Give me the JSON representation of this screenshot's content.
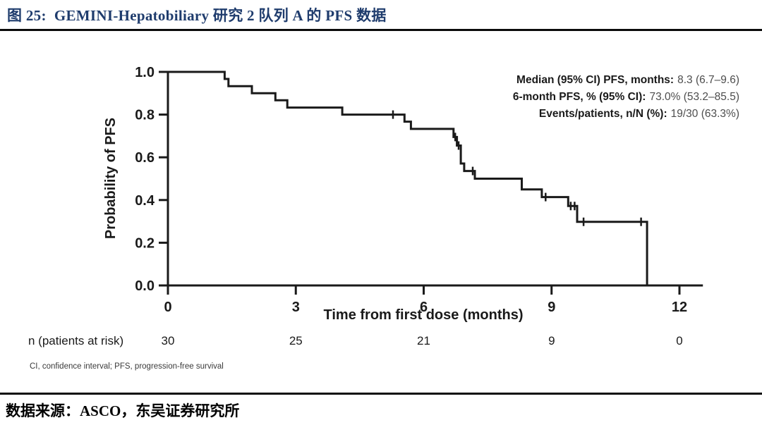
{
  "header": {
    "title": "图 25:  GEMINI-Hepatobiliary 研究 2 队列 A 的 PFS 数据"
  },
  "footer": {
    "source": "数据来源：ASCO，东吴证券研究所"
  },
  "colors": {
    "title_navy": "#1f3c6d",
    "curve_black": "#1a1a1a",
    "stat_value_gray": "#4d4d4d"
  },
  "chart_data": {
    "type": "line",
    "subtype": "kaplan-meier-step",
    "title": "",
    "xlabel": "Time from first dose (months)",
    "ylabel": "Probability of PFS",
    "xticks": [
      0,
      3,
      6,
      9,
      12
    ],
    "ytick_labels": [
      "1.0",
      "0.8",
      "0.6",
      "0.4",
      "0.2",
      "0.0"
    ],
    "xlim": [
      0,
      12.55
    ],
    "ylim": [
      0,
      1.0
    ],
    "grid": false,
    "legend_position": "none",
    "series": [
      {
        "name": "Cohort A PFS",
        "steps": [
          [
            0,
            1.0
          ],
          [
            1.33,
            0.967
          ],
          [
            1.42,
            0.933
          ],
          [
            1.97,
            0.9
          ],
          [
            2.52,
            0.867
          ],
          [
            2.8,
            0.833
          ],
          [
            4.09,
            0.8
          ],
          [
            5.55,
            0.767
          ],
          [
            5.7,
            0.733
          ],
          [
            6.7,
            0.695
          ],
          [
            6.78,
            0.655
          ],
          [
            6.87,
            0.571
          ],
          [
            6.95,
            0.536
          ],
          [
            7.2,
            0.5
          ],
          [
            8.3,
            0.45
          ],
          [
            8.77,
            0.414
          ],
          [
            9.39,
            0.372
          ],
          [
            9.6,
            0.298
          ],
          [
            11.24,
            0.0
          ]
        ],
        "censors": [
          [
            5.28,
            0.8
          ],
          [
            6.74,
            0.695
          ],
          [
            6.82,
            0.655
          ],
          [
            7.15,
            0.536
          ],
          [
            8.86,
            0.414
          ],
          [
            9.45,
            0.372
          ],
          [
            9.54,
            0.372
          ],
          [
            9.75,
            0.298
          ],
          [
            11.1,
            0.298
          ]
        ]
      }
    ],
    "annotations": [
      {
        "label": "Median (95% CI) PFS, months:",
        "value": "8.3 (6.7–9.6)"
      },
      {
        "label": "6-month PFS, % (95% CI):",
        "value": "73.0% (53.2–85.5)"
      },
      {
        "label": "Events/patients, n/N (%):",
        "value": "19/30 (63.3%)"
      }
    ],
    "risk_table": {
      "label": "n (patients at risk)",
      "months": [
        0,
        3,
        6,
        9,
        12
      ],
      "values": [
        "30",
        "25",
        "21",
        "9",
        "0"
      ]
    },
    "footnote": "CI, confidence interval; PFS, progression-free survival"
  }
}
